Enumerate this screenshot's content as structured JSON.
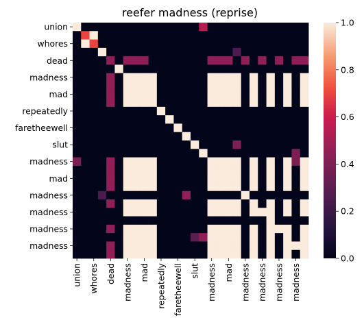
{
  "chart_data": {
    "type": "heatmap",
    "title": "reefer madness (reprise)",
    "xlabel": "",
    "ylabel": "",
    "labels": [
      "union",
      "",
      "whores",
      "",
      "dead",
      "",
      "madness",
      "",
      "mad",
      "",
      "repeatedly",
      "",
      "faretheewell",
      "",
      "slut",
      "",
      "madness",
      "",
      "mad",
      "",
      "madness",
      "",
      "madness",
      "",
      "madness",
      "",
      "madness",
      ""
    ],
    "x_tick_labels": [
      "union",
      "whores",
      "dead",
      "madness",
      "mad",
      "repeatedly",
      "faretheewell",
      "slut",
      "madness",
      "mad",
      "madness",
      "madness",
      "madness",
      "madness"
    ],
    "y_tick_labels": [
      "union",
      "whores",
      "dead",
      "madness",
      "mad",
      "repeatedly",
      "faretheewell",
      "slut",
      "madness",
      "mad",
      "madness",
      "madness",
      "madness",
      "madness"
    ],
    "values": [
      [
        1,
        0,
        0,
        0,
        0,
        0,
        0,
        0,
        0,
        0,
        0,
        0,
        0,
        0,
        0,
        0,
        0,
        0,
        0,
        0,
        0,
        0,
        0,
        0,
        0,
        0,
        0,
        0
      ],
      [
        0,
        0.7,
        1,
        0,
        0,
        0,
        0,
        0,
        0,
        0,
        0,
        0,
        0,
        0,
        0,
        0,
        0,
        0,
        0,
        0,
        0,
        0,
        0,
        0,
        0,
        0,
        0,
        0
      ],
      [
        0,
        1,
        0.7,
        0,
        0,
        0,
        0,
        0,
        0,
        0,
        0,
        0,
        0,
        0,
        0,
        0,
        0,
        0,
        0,
        0,
        0,
        0,
        0,
        0,
        0,
        0,
        0,
        0
      ],
      [
        0,
        0,
        0,
        1,
        0,
        0,
        0,
        0,
        0,
        0,
        0,
        0,
        0,
        0,
        0,
        0,
        0,
        0,
        0,
        0,
        0,
        0,
        0,
        0,
        0,
        0,
        0,
        0
      ],
      [
        0,
        0,
        0,
        0,
        1,
        0,
        0,
        0,
        0,
        0,
        0,
        0,
        0,
        0,
        0,
        0,
        0,
        0,
        0,
        0,
        0,
        0,
        0,
        0,
        0,
        0,
        0,
        0
      ],
      [
        0,
        0,
        0,
        0,
        0,
        1,
        0,
        0,
        0,
        0,
        0,
        0,
        0,
        0,
        0,
        0,
        0,
        0,
        0,
        0,
        0,
        0,
        0,
        0,
        0,
        0,
        0,
        0
      ],
      [
        0,
        0,
        0,
        0,
        0,
        0,
        1,
        0,
        0,
        0,
        0,
        0,
        0,
        0,
        0,
        0,
        0,
        0,
        0,
        0,
        0,
        0,
        0,
        0,
        0,
        0,
        0,
        0
      ],
      [
        0,
        0,
        0,
        0,
        0,
        0,
        0,
        1,
        0,
        0,
        0,
        0,
        0,
        0,
        0,
        0,
        0,
        0,
        0,
        0,
        0,
        0,
        0,
        0,
        0,
        0,
        0,
        0
      ],
      [
        0,
        0,
        0,
        0,
        0,
        0,
        0,
        0,
        1,
        0,
        0,
        0,
        0,
        0,
        0,
        0,
        0,
        0,
        0,
        0,
        0,
        0,
        0,
        0,
        0,
        0,
        0,
        0
      ],
      [
        0,
        0,
        0,
        0,
        0,
        0,
        0,
        0,
        0,
        1,
        0,
        0,
        0,
        0,
        0,
        0,
        0,
        0,
        0,
        0,
        0,
        0,
        0,
        0,
        0,
        0,
        0,
        0
      ],
      [
        0,
        0,
        0,
        0,
        0,
        0,
        0,
        0,
        0,
        0,
        1,
        0,
        0,
        0,
        0,
        0,
        0,
        0,
        0,
        0,
        0,
        0,
        0,
        0,
        0,
        0,
        0,
        0
      ],
      [
        0,
        0,
        0,
        0,
        0,
        0,
        0,
        0,
        0,
        0,
        0,
        1,
        0,
        0,
        0,
        0,
        0,
        0,
        0,
        0,
        0,
        0,
        0,
        0,
        0,
        0,
        0,
        0
      ],
      [
        0,
        0,
        0,
        0,
        0,
        0,
        0,
        0,
        0,
        0,
        0,
        0,
        1,
        0,
        0,
        0,
        0,
        0,
        0,
        0,
        0,
        0,
        0,
        0,
        0,
        0,
        0,
        0
      ],
      [
        0,
        0,
        0,
        0,
        0,
        0,
        0,
        0,
        0,
        0,
        0,
        0,
        0,
        1,
        0,
        0,
        0,
        0,
        0,
        0,
        0,
        0,
        0,
        0,
        0,
        0,
        0,
        0
      ],
      [
        0,
        0,
        0,
        0,
        0,
        0,
        0,
        0,
        0,
        0,
        0,
        0,
        0,
        0,
        1,
        0,
        0,
        0,
        0,
        0,
        0,
        0,
        0,
        0,
        0,
        0,
        0,
        0
      ],
      [
        0,
        0,
        0,
        0,
        0,
        0,
        0,
        0,
        0,
        0,
        0,
        0,
        0,
        0,
        0,
        1,
        0,
        0,
        0,
        0,
        0,
        0,
        0,
        0,
        0,
        0,
        0,
        0
      ],
      [
        0,
        0,
        0,
        0,
        0,
        0,
        0,
        0,
        0,
        0,
        0,
        0,
        0,
        0,
        0,
        0,
        1,
        0,
        0,
        0,
        0,
        0,
        0,
        0,
        0,
        0,
        0,
        0
      ],
      [
        0,
        0,
        0,
        0,
        0,
        0,
        0,
        0,
        0,
        0,
        0,
        0,
        0,
        0,
        0,
        0,
        0,
        1,
        0,
        0,
        0,
        0,
        0,
        0,
        0,
        0,
        0,
        0
      ],
      [
        0,
        0,
        0,
        0,
        0,
        0,
        0,
        0,
        0,
        0,
        0,
        0,
        0,
        0,
        0,
        0,
        0,
        0,
        1,
        0,
        0,
        0,
        0,
        0,
        0,
        0,
        0,
        0
      ],
      [
        0,
        0,
        0,
        0,
        0,
        0,
        0,
        0,
        0,
        0,
        0,
        0,
        0,
        0,
        0,
        0,
        0,
        0,
        0,
        1,
        0,
        0,
        0,
        0,
        0,
        0,
        0,
        0
      ],
      [
        0,
        0,
        0,
        0,
        0,
        0,
        0,
        0,
        0,
        0,
        0,
        0,
        0,
        0,
        0,
        0,
        0,
        0,
        0,
        0,
        1,
        0,
        0,
        0,
        0,
        0,
        0,
        0
      ],
      [
        0,
        0,
        0,
        0,
        0,
        0,
        0,
        0,
        0,
        0,
        0,
        0,
        0,
        0,
        0,
        0,
        0,
        0,
        0,
        0,
        0,
        1,
        0,
        0,
        0,
        0,
        0,
        0
      ],
      [
        0,
        0,
        0,
        0,
        0,
        0,
        0,
        0,
        0,
        0,
        0,
        0,
        0,
        0,
        0,
        0,
        0,
        0,
        0,
        0,
        0,
        0,
        1,
        0,
        0,
        0,
        0,
        0
      ],
      [
        0,
        0,
        0,
        0,
        0,
        0,
        0,
        0,
        0,
        0,
        0,
        0,
        0,
        0,
        0,
        0,
        0,
        0,
        0,
        0,
        0,
        0,
        0,
        1,
        0,
        0,
        0,
        0
      ],
      [
        0,
        0,
        0,
        0,
        0,
        0,
        0,
        0,
        0,
        0,
        0,
        0,
        0,
        0,
        0,
        0,
        0,
        0,
        0,
        0,
        0,
        0,
        0,
        0,
        1,
        0,
        0,
        0
      ],
      [
        0,
        0,
        0,
        0,
        0,
        0,
        0,
        0,
        0,
        0,
        0,
        0,
        0,
        0,
        0,
        0,
        0,
        0,
        0,
        0,
        0,
        0,
        0,
        0,
        0,
        1,
        0,
        0
      ],
      [
        0,
        0,
        0,
        0,
        0,
        0,
        0,
        0,
        0,
        0,
        0,
        0,
        0,
        0,
        0,
        0,
        0,
        0,
        0,
        0,
        0,
        0,
        0,
        0,
        0,
        0,
        1,
        0
      ],
      [
        0,
        0,
        0,
        0,
        0,
        0,
        0,
        0,
        0,
        0,
        0,
        0,
        0,
        0,
        0,
        0,
        0,
        0,
        0,
        0,
        0,
        0,
        0,
        0,
        0,
        0,
        0,
        1
      ]
    ],
    "extra_cells": [
      {
        "r": 0,
        "c": 15,
        "v": 0.55
      },
      {
        "r": 3,
        "c": 19,
        "v": 0.25
      },
      {
        "r": 4,
        "c": 4,
        "v": 0.45
      },
      {
        "r": 4,
        "c": 6,
        "v": 0.45
      },
      {
        "r": 4,
        "c": 7,
        "v": 0.45
      },
      {
        "r": 4,
        "c": 8,
        "v": 0.45
      },
      {
        "r": 4,
        "c": 16,
        "v": 0.45
      },
      {
        "r": 4,
        "c": 17,
        "v": 0.45
      },
      {
        "r": 4,
        "c": 18,
        "v": 0.45
      },
      {
        "r": 4,
        "c": 20,
        "v": 0.45
      },
      {
        "r": 4,
        "c": 22,
        "v": 0.45
      },
      {
        "r": 4,
        "c": 24,
        "v": 0.45
      },
      {
        "r": 4,
        "c": 26,
        "v": 0.45
      },
      {
        "r": 4,
        "c": 27,
        "v": 0.45
      },
      {
        "r": 6,
        "c": 4,
        "v": 0.45
      },
      {
        "r": 7,
        "c": 4,
        "v": 0.45
      },
      {
        "r": 8,
        "c": 4,
        "v": 0.45
      },
      {
        "r": 9,
        "c": 4,
        "v": 0.45
      },
      {
        "r": 14,
        "c": 19,
        "v": 0.4
      },
      {
        "r": 15,
        "c": 26,
        "v": 0.4
      },
      {
        "r": 16,
        "c": 0,
        "v": 0.4
      },
      {
        "r": 16,
        "c": 26,
        "v": 0.4
      },
      {
        "r": 16,
        "c": 21,
        "v": 1
      },
      {
        "r": 16,
        "c": 4,
        "v": 0.45
      },
      {
        "r": 17,
        "c": 4,
        "v": 0.45
      },
      {
        "r": 18,
        "c": 4,
        "v": 0.45
      },
      {
        "r": 19,
        "c": 4,
        "v": 0.45
      },
      {
        "r": 20,
        "c": 3,
        "v": 0.25
      },
      {
        "r": 20,
        "c": 13,
        "v": 0.45
      },
      {
        "r": 21,
        "c": 4,
        "v": 0.45
      },
      {
        "r": 24,
        "c": 4,
        "v": 0.45
      },
      {
        "r": 26,
        "c": 4,
        "v": 0.45
      },
      {
        "r": 27,
        "c": 4,
        "v": 0.45
      },
      {
        "r": 25,
        "c": 14,
        "v": 0.3
      },
      {
        "r": 25,
        "c": 15,
        "v": 0.45
      }
    ],
    "block_rows": [
      6,
      7,
      8,
      9,
      16,
      17,
      18,
      19,
      21,
      22,
      24,
      25,
      26,
      27
    ],
    "block_cols": [
      6,
      7,
      8,
      9,
      16,
      17,
      18,
      19,
      21,
      23,
      25,
      27
    ],
    "vmin": 0,
    "vmax": 1,
    "colorbar_ticks": [
      "0.0",
      "0.2",
      "0.4",
      "0.6",
      "0.8",
      "1.0"
    ],
    "colorbar_tick_values": [
      0,
      0.2,
      0.4,
      0.6,
      0.8,
      1.0
    ],
    "colormap": "rocket",
    "colors": {
      "low": "#03051a",
      "high": "#faebdd"
    }
  }
}
